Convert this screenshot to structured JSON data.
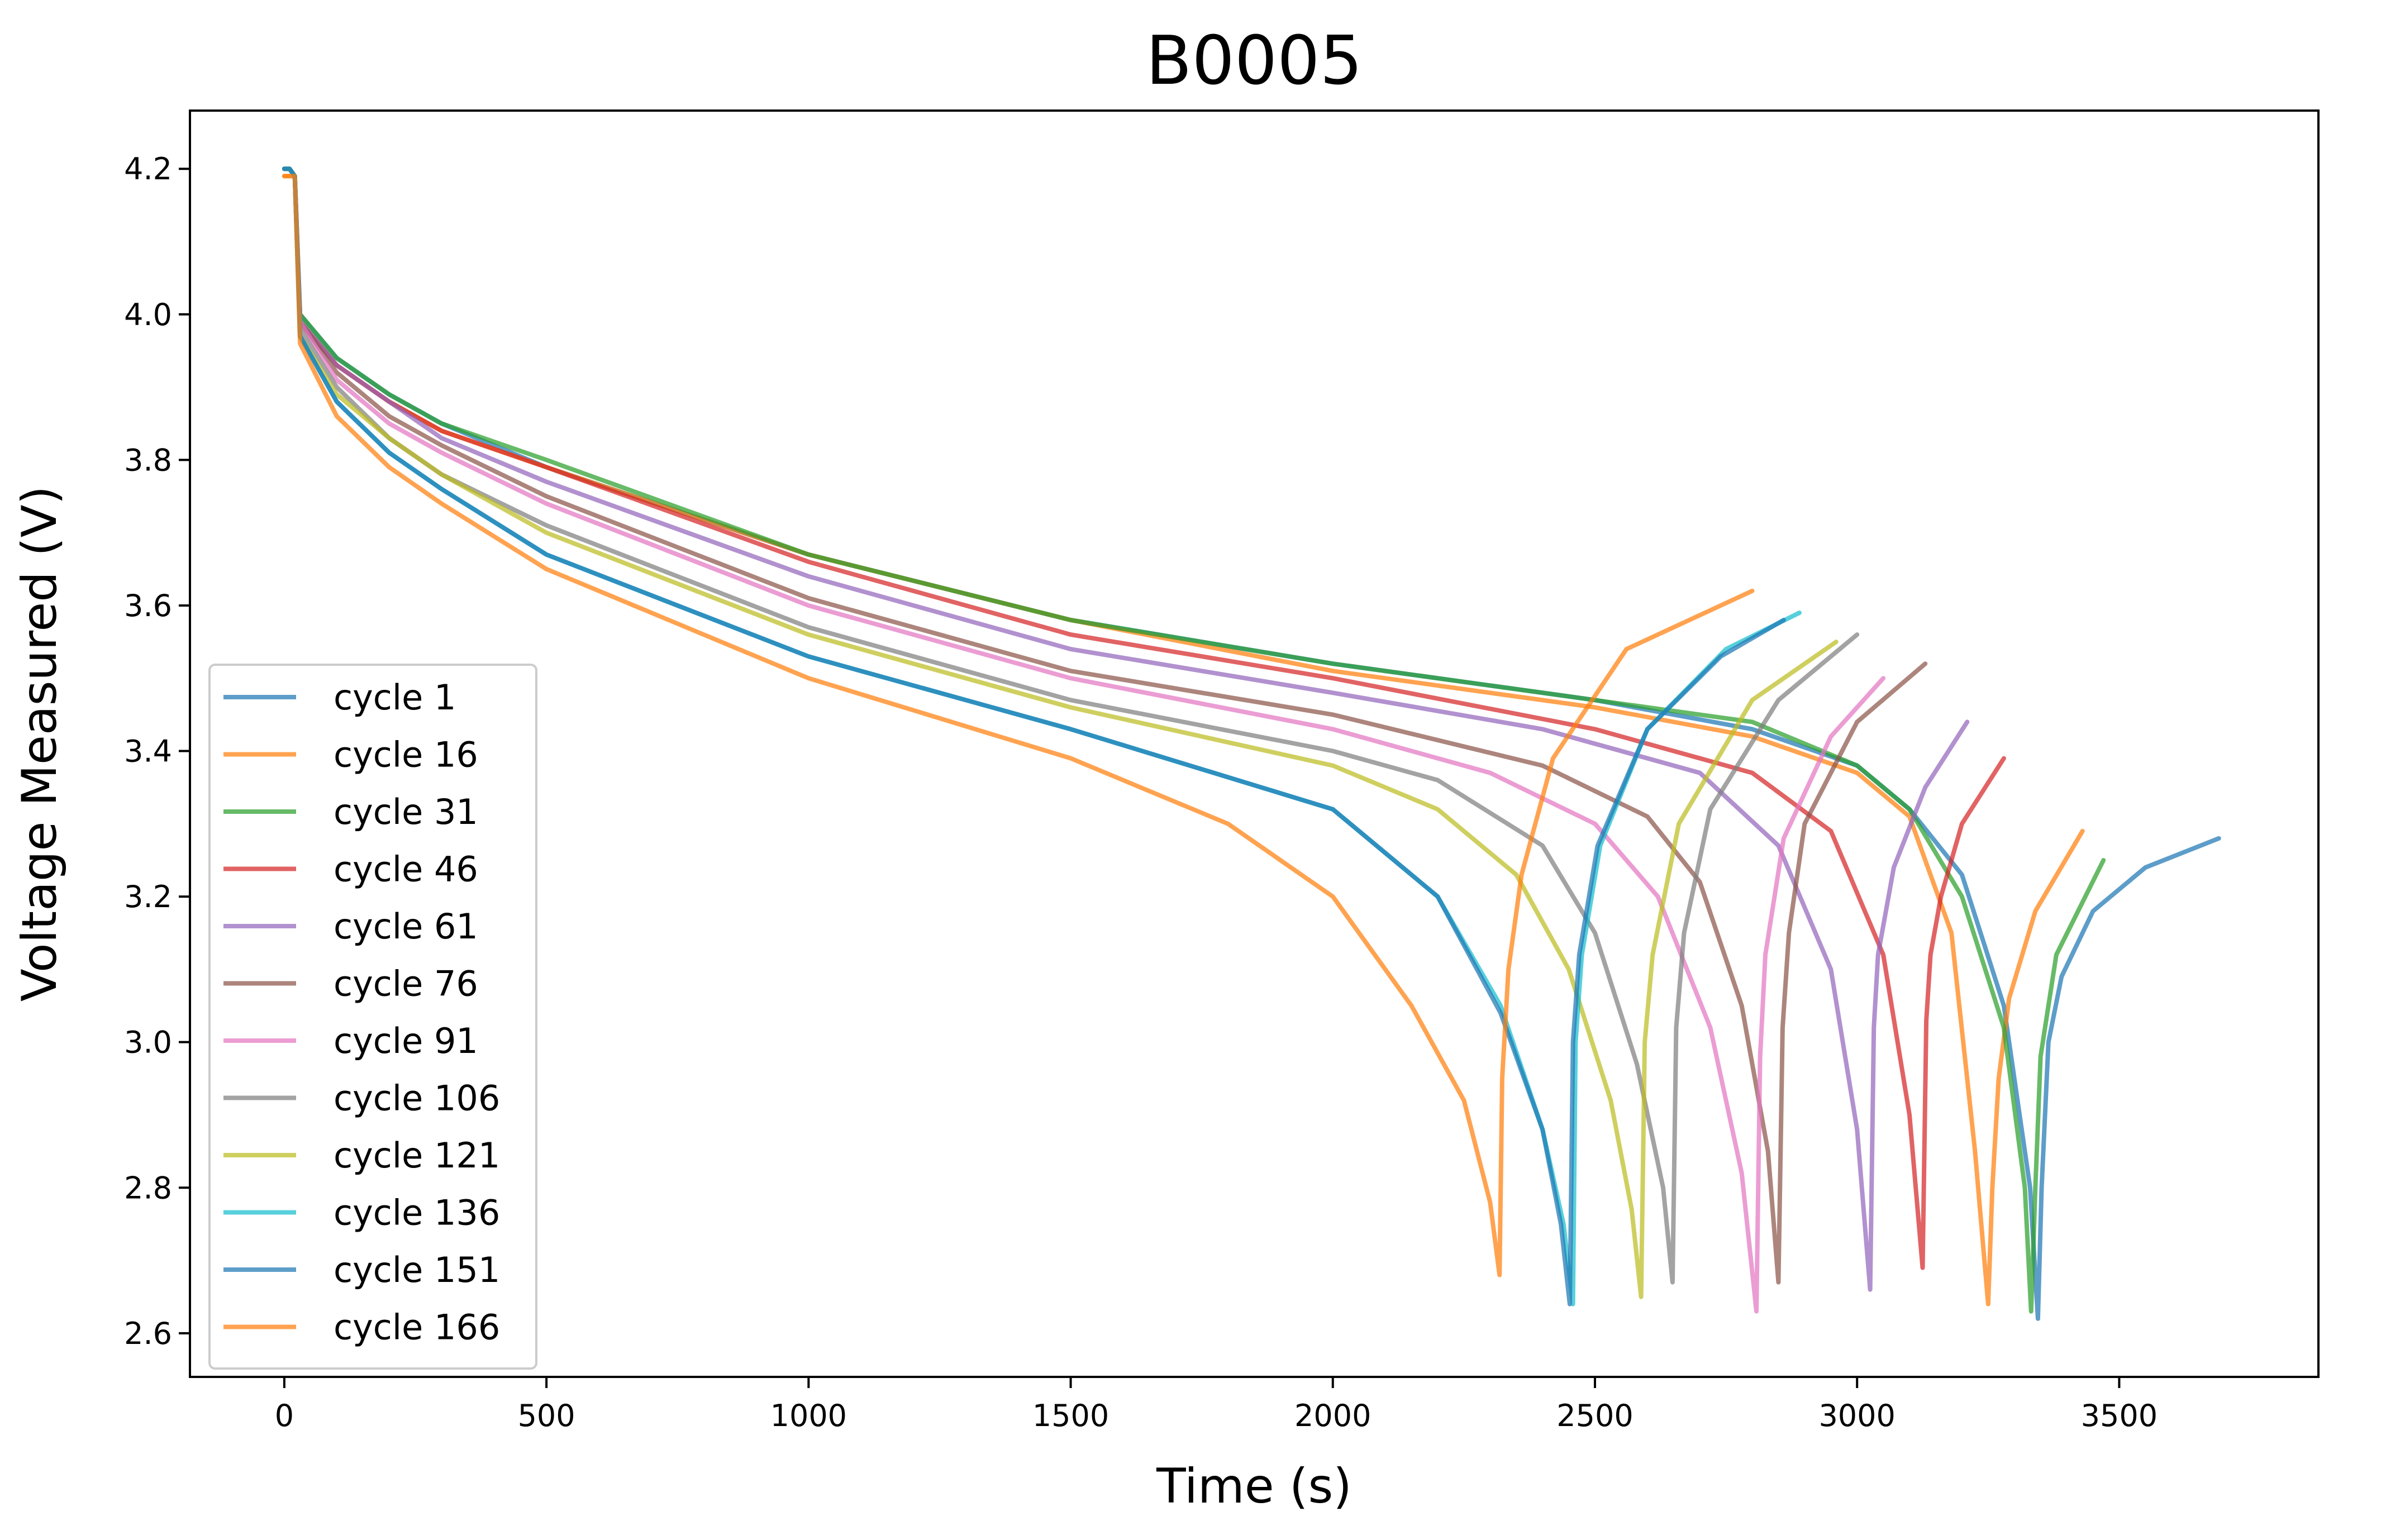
{
  "chart_data": {
    "type": "line",
    "title": "B0005",
    "xlabel": "Time (s)",
    "ylabel": "Voltage Measured (V)",
    "xlim": [
      -180,
      3880
    ],
    "ylim": [
      2.54,
      4.28
    ],
    "xticks": [
      0,
      500,
      1000,
      1500,
      2000,
      2500,
      3000,
      3500
    ],
    "yticks": [
      2.6,
      2.8,
      3.0,
      3.2,
      3.4,
      3.6,
      3.8,
      4.0,
      4.2
    ],
    "grid": false,
    "legend_position": "lower-left",
    "series": [
      {
        "name": "cycle 1",
        "color": "#1f77b4",
        "x": [
          0,
          10,
          20,
          30,
          100,
          200,
          300,
          500,
          1000,
          1500,
          2000,
          2500,
          2800,
          3000,
          3100,
          3200,
          3280,
          3330,
          3345,
          3352,
          3365,
          3390,
          3450,
          3550,
          3690
        ],
        "y": [
          4.2,
          4.2,
          4.19,
          4.0,
          3.94,
          3.89,
          3.85,
          3.79,
          3.67,
          3.58,
          3.52,
          3.47,
          3.43,
          3.38,
          3.32,
          3.23,
          3.05,
          2.8,
          2.62,
          2.8,
          3.0,
          3.09,
          3.18,
          3.24,
          3.28
        ]
      },
      {
        "name": "cycle 16",
        "color": "#ff7f0e",
        "x": [
          0,
          10,
          20,
          30,
          100,
          200,
          300,
          500,
          1000,
          1500,
          2000,
          2500,
          2800,
          3000,
          3100,
          3180,
          3225,
          3250,
          3258,
          3270,
          3290,
          3340,
          3430
        ],
        "y": [
          4.19,
          4.19,
          4.19,
          3.99,
          3.93,
          3.88,
          3.84,
          3.79,
          3.67,
          3.58,
          3.51,
          3.46,
          3.42,
          3.37,
          3.31,
          3.15,
          2.85,
          2.64,
          2.8,
          2.95,
          3.06,
          3.18,
          3.29
        ]
      },
      {
        "name": "cycle 31",
        "color": "#2ca02c",
        "x": [
          0,
          10,
          20,
          30,
          100,
          200,
          300,
          500,
          1000,
          1500,
          2000,
          2500,
          2800,
          3000,
          3100,
          3200,
          3280,
          3320,
          3332,
          3340,
          3350,
          3380,
          3470
        ],
        "y": [
          4.2,
          4.2,
          4.19,
          4.0,
          3.94,
          3.89,
          3.85,
          3.8,
          3.67,
          3.58,
          3.52,
          3.47,
          3.44,
          3.38,
          3.32,
          3.2,
          3.02,
          2.8,
          2.63,
          2.8,
          2.98,
          3.12,
          3.25
        ]
      },
      {
        "name": "cycle 46",
        "color": "#d62728",
        "x": [
          0,
          10,
          20,
          30,
          100,
          200,
          300,
          500,
          1000,
          1500,
          2000,
          2500,
          2800,
          2950,
          3050,
          3100,
          3125,
          3132,
          3140,
          3160,
          3200,
          3280
        ],
        "y": [
          4.2,
          4.2,
          4.19,
          3.99,
          3.93,
          3.88,
          3.84,
          3.79,
          3.66,
          3.56,
          3.5,
          3.43,
          3.37,
          3.29,
          3.12,
          2.9,
          2.69,
          3.03,
          3.12,
          3.2,
          3.3,
          3.39
        ]
      },
      {
        "name": "cycle 61",
        "color": "#9467bd",
        "x": [
          0,
          10,
          20,
          30,
          100,
          200,
          300,
          500,
          1000,
          1500,
          2000,
          2400,
          2700,
          2850,
          2950,
          3000,
          3025,
          3032,
          3040,
          3070,
          3130,
          3210
        ],
        "y": [
          4.2,
          4.2,
          4.19,
          3.99,
          3.93,
          3.88,
          3.83,
          3.77,
          3.64,
          3.54,
          3.48,
          3.43,
          3.37,
          3.27,
          3.1,
          2.88,
          2.66,
          3.02,
          3.12,
          3.24,
          3.35,
          3.44
        ]
      },
      {
        "name": "cycle 76",
        "color": "#8c564b",
        "x": [
          0,
          10,
          20,
          30,
          100,
          200,
          300,
          500,
          1000,
          1500,
          2000,
          2400,
          2600,
          2700,
          2780,
          2830,
          2850,
          2858,
          2870,
          2900,
          3000,
          3130
        ],
        "y": [
          4.2,
          4.2,
          4.19,
          3.99,
          3.92,
          3.86,
          3.82,
          3.75,
          3.61,
          3.51,
          3.45,
          3.38,
          3.31,
          3.22,
          3.05,
          2.85,
          2.67,
          3.02,
          3.15,
          3.3,
          3.44,
          3.52
        ]
      },
      {
        "name": "cycle 91",
        "color": "#e377c2",
        "x": [
          0,
          10,
          20,
          30,
          100,
          200,
          300,
          500,
          1000,
          1500,
          2000,
          2300,
          2500,
          2620,
          2720,
          2780,
          2808,
          2815,
          2825,
          2860,
          2950,
          3050
        ],
        "y": [
          4.2,
          4.2,
          4.19,
          3.99,
          3.91,
          3.85,
          3.81,
          3.74,
          3.6,
          3.5,
          3.43,
          3.37,
          3.3,
          3.2,
          3.02,
          2.82,
          2.63,
          2.98,
          3.12,
          3.28,
          3.42,
          3.5
        ]
      },
      {
        "name": "cycle 106",
        "color": "#7f7f7f",
        "x": [
          0,
          10,
          20,
          30,
          100,
          200,
          300,
          500,
          1000,
          1500,
          2000,
          2200,
          2400,
          2500,
          2580,
          2630,
          2648,
          2655,
          2670,
          2720,
          2850,
          3000
        ],
        "y": [
          4.2,
          4.2,
          4.19,
          3.98,
          3.9,
          3.83,
          3.78,
          3.71,
          3.57,
          3.47,
          3.4,
          3.36,
          3.27,
          3.15,
          2.97,
          2.8,
          2.67,
          3.02,
          3.15,
          3.32,
          3.47,
          3.56
        ]
      },
      {
        "name": "cycle 121",
        "color": "#bcbd22",
        "x": [
          0,
          10,
          20,
          30,
          100,
          200,
          300,
          500,
          1000,
          1500,
          2000,
          2200,
          2350,
          2450,
          2530,
          2570,
          2588,
          2595,
          2610,
          2660,
          2800,
          2960
        ],
        "y": [
          4.2,
          4.2,
          4.19,
          3.97,
          3.89,
          3.83,
          3.78,
          3.7,
          3.56,
          3.46,
          3.38,
          3.32,
          3.23,
          3.1,
          2.92,
          2.77,
          2.65,
          3.0,
          3.12,
          3.3,
          3.47,
          3.55
        ]
      },
      {
        "name": "cycle 136",
        "color": "#17becf",
        "x": [
          0,
          10,
          20,
          30,
          100,
          200,
          300,
          500,
          1000,
          1500,
          2000,
          2200,
          2320,
          2400,
          2440,
          2458,
          2463,
          2475,
          2510,
          2600,
          2750,
          2890
        ],
        "y": [
          4.2,
          4.2,
          4.19,
          3.97,
          3.88,
          3.81,
          3.76,
          3.67,
          3.53,
          3.43,
          3.32,
          3.2,
          3.05,
          2.88,
          2.75,
          2.64,
          3.0,
          3.12,
          3.27,
          3.43,
          3.54,
          3.59
        ]
      },
      {
        "name": "cycle 151",
        "color": "#1f77b4",
        "x": [
          0,
          10,
          20,
          30,
          100,
          200,
          300,
          500,
          1000,
          1500,
          2000,
          2200,
          2320,
          2400,
          2435,
          2452,
          2458,
          2470,
          2505,
          2600,
          2740,
          2860
        ],
        "y": [
          4.2,
          4.2,
          4.19,
          3.97,
          3.88,
          3.81,
          3.76,
          3.67,
          3.53,
          3.43,
          3.32,
          3.2,
          3.04,
          2.88,
          2.75,
          2.64,
          3.0,
          3.12,
          3.27,
          3.43,
          3.53,
          3.58
        ]
      },
      {
        "name": "cycle 166",
        "color": "#ff7f0e",
        "x": [
          0,
          10,
          20,
          30,
          100,
          200,
          300,
          500,
          1000,
          1500,
          1800,
          2000,
          2150,
          2250,
          2300,
          2318,
          2323,
          2335,
          2360,
          2420,
          2560,
          2800
        ],
        "y": [
          4.19,
          4.19,
          4.19,
          3.96,
          3.86,
          3.79,
          3.74,
          3.65,
          3.5,
          3.39,
          3.3,
          3.2,
          3.05,
          2.92,
          2.78,
          2.68,
          2.95,
          3.1,
          3.23,
          3.39,
          3.54,
          3.62
        ]
      }
    ]
  }
}
